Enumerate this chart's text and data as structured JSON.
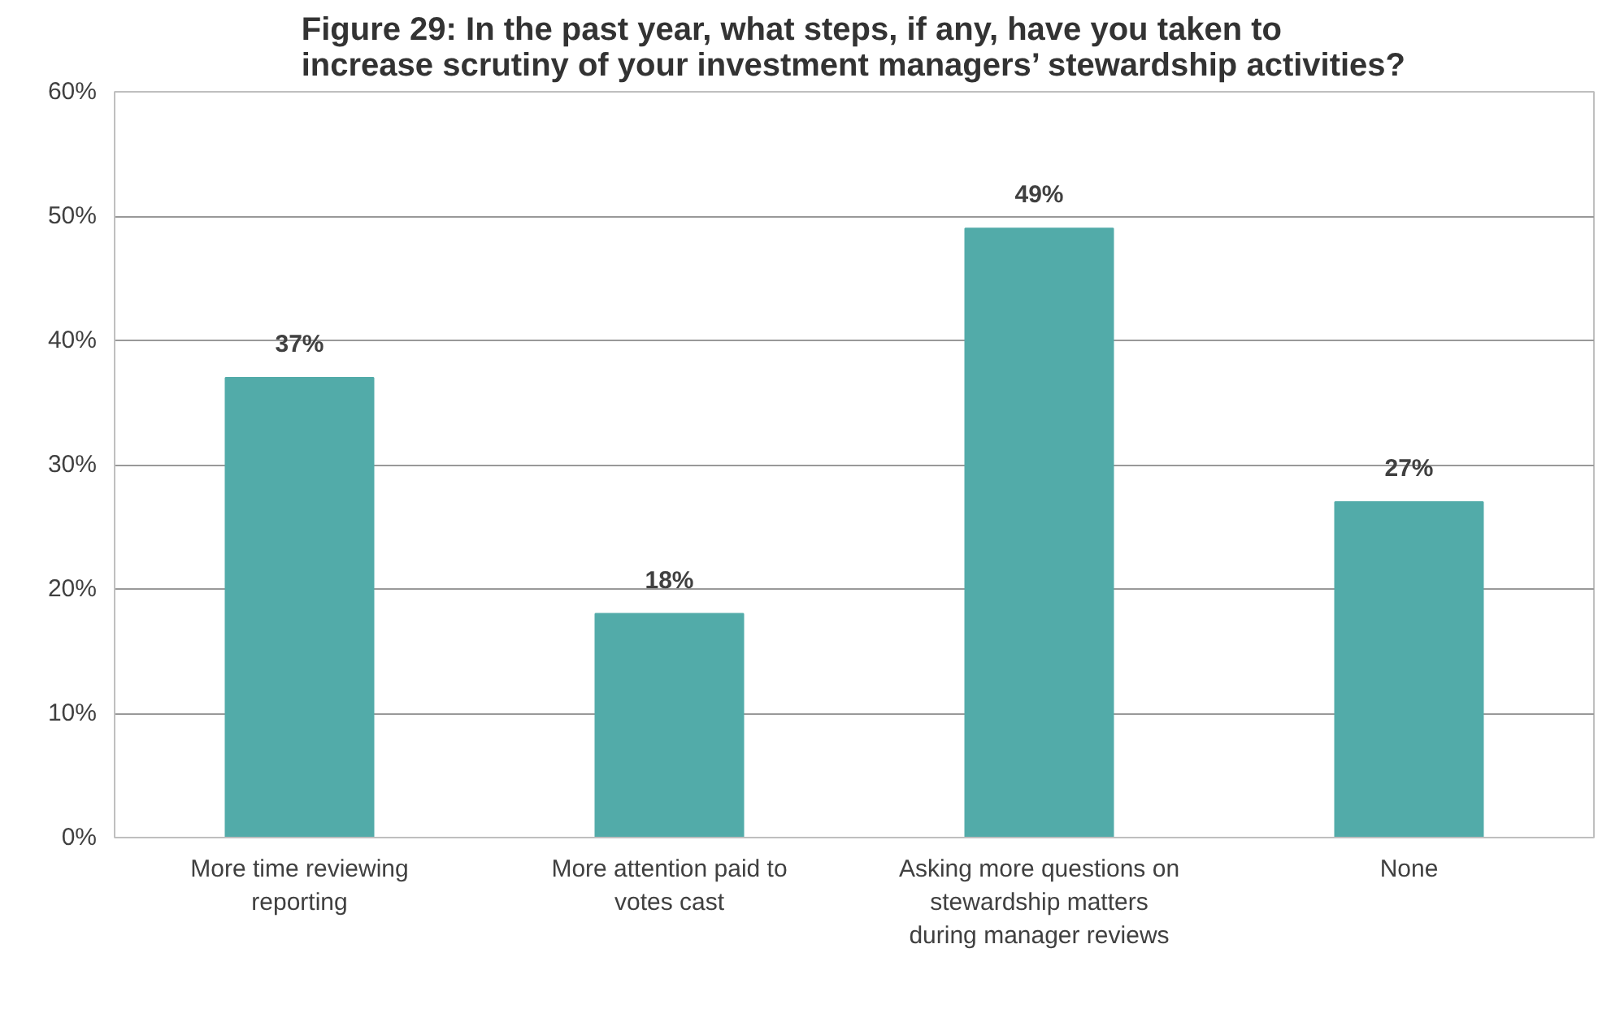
{
  "chart_data": {
    "type": "bar",
    "title": "Figure 29: In the past year, what steps, if any, have you taken to\nincrease scrutiny of your investment managers’ stewardship activities?",
    "categories": [
      "More time reviewing reporting",
      "More attention paid to votes cast",
      "Asking more questions on stewardship matters during manager reviews",
      "None"
    ],
    "values": [
      37,
      18,
      49,
      27
    ],
    "color": "#52aba9",
    "ylim": [
      0,
      60
    ],
    "yticks": [
      {
        "value": 0,
        "label": "0%"
      },
      {
        "value": 10,
        "label": "10%"
      },
      {
        "value": 20,
        "label": "20%"
      },
      {
        "value": 30,
        "label": "30%"
      },
      {
        "value": 40,
        "label": "40%"
      },
      {
        "value": 50,
        "label": "50%"
      },
      {
        "value": 60,
        "label": "60%"
      }
    ],
    "value_labels": [
      "37%",
      "18%",
      "49%",
      "27%"
    ],
    "grid": "y"
  }
}
